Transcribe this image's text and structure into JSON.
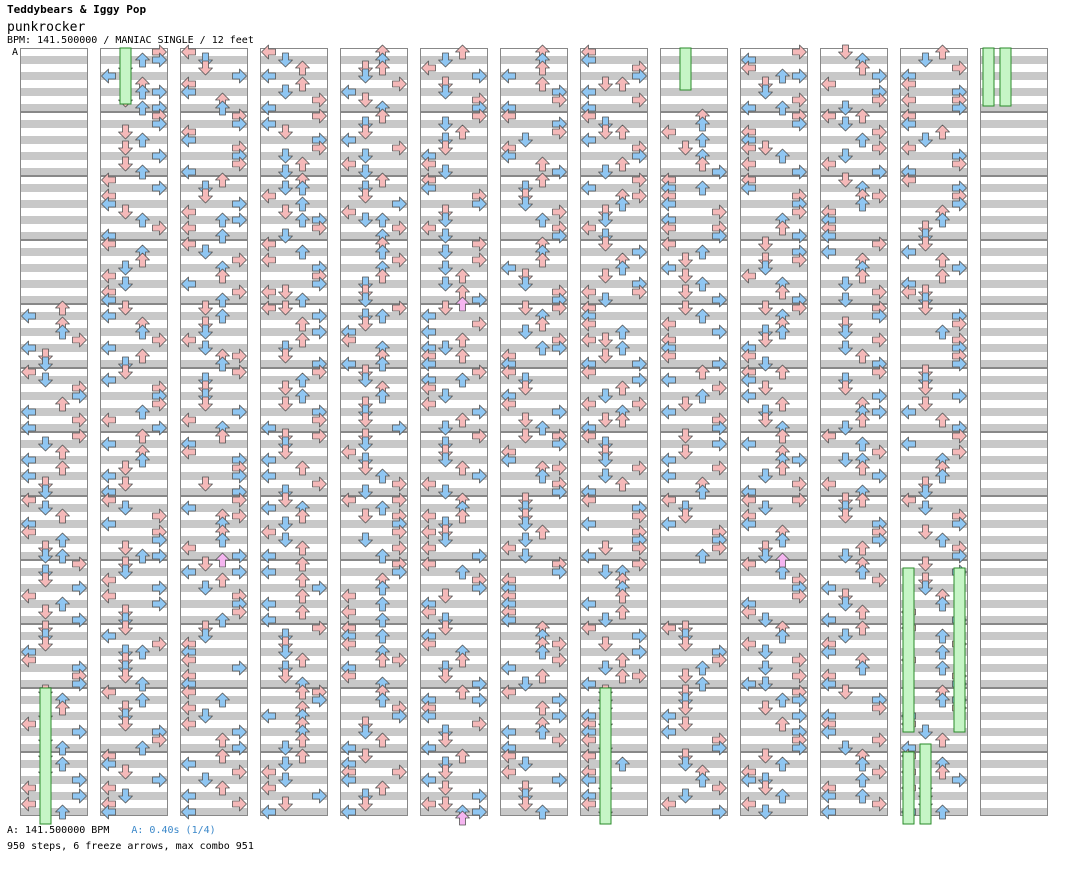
{
  "song": {
    "title": "Teddybears & Iggy Pop",
    "subtitle": "punkrocker",
    "info": "BPM: 141.500000 / MANIAC SINGLE / 12 feet",
    "marker": "A"
  },
  "footer": {
    "bpm": "A: 141.500000 BPM",
    "offset": "A: 0.40s (1/4)",
    "stats": "950 steps, 6 freeze arrows, max combo 951"
  },
  "colors": {
    "red_arrow": "#f5b9b9",
    "blue_arrow": "#8fc6f2",
    "pink_arrow": "#f5b5f0",
    "freeze": "#c6f5c6",
    "stripe": "#c8c8c8"
  },
  "chart": {
    "columns": 13,
    "measures_per_column": 12,
    "freeze_arrows": [
      {
        "column": 2,
        "lane": 1
      },
      {
        "column": 9,
        "lane": 1
      },
      {
        "column": 13,
        "lane": 0
      },
      {
        "column": 13,
        "lane": 1
      },
      {
        "column": 1,
        "lane": 1
      },
      {
        "column": 8,
        "lane": 1
      },
      {
        "column": 12,
        "lane": 0
      },
      {
        "column": 12,
        "lane": 3
      }
    ]
  }
}
